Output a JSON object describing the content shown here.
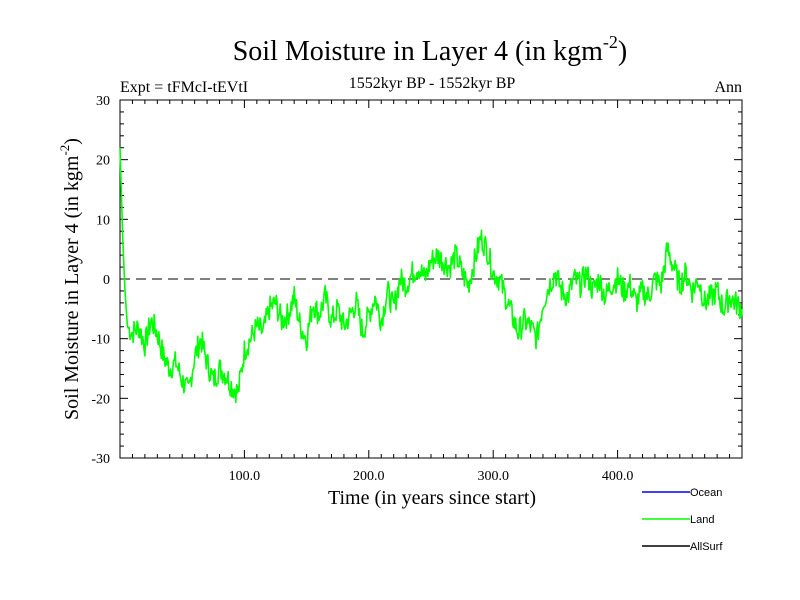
{
  "chart_data": {
    "type": "line",
    "title": "Soil Moisture in Layer 4 (in kgm",
    "title_superscript": "-2",
    "title_close": ")",
    "subtitle": "1552kyr BP - 1552kyr BP",
    "left_caption": "Expt = tFMcI-tEVtI",
    "right_caption": "Ann",
    "xlabel": "Time (in years since start)",
    "ylabel": "Soil Moisture in Layer 4 (in kgm",
    "ylabel_superscript": "-2",
    "ylabel_close": ")",
    "xlim": [
      0,
      500
    ],
    "ylim": [
      -30,
      30
    ],
    "xticks": [
      100,
      200,
      300,
      400
    ],
    "xtick_labels": [
      "100.0",
      "200.0",
      "300.0",
      "400.0"
    ],
    "yticks": [
      -30,
      -20,
      -10,
      0,
      10,
      20,
      30
    ],
    "ytick_labels": [
      "-30",
      "-20",
      "-10",
      "0",
      "10",
      "20",
      "30"
    ],
    "reference_line": 0,
    "legend": [
      {
        "name": "Ocean",
        "color": "#0000ff"
      },
      {
        "name": "Land",
        "color": "#00ff00"
      },
      {
        "name": "AllSurf",
        "color": "#000000"
      }
    ],
    "series": [
      {
        "name": "Land",
        "color": "#00ff00",
        "x": [
          0,
          2,
          4,
          6,
          10,
          15,
          20,
          25,
          30,
          35,
          40,
          45,
          50,
          55,
          60,
          65,
          70,
          75,
          80,
          85,
          90,
          95,
          100,
          105,
          110,
          115,
          120,
          125,
          130,
          135,
          140,
          145,
          150,
          155,
          160,
          165,
          170,
          175,
          180,
          185,
          190,
          195,
          200,
          205,
          210,
          215,
          220,
          225,
          230,
          235,
          240,
          245,
          250,
          255,
          260,
          265,
          270,
          275,
          280,
          285,
          290,
          295,
          300,
          305,
          310,
          315,
          320,
          325,
          330,
          335,
          340,
          345,
          350,
          355,
          360,
          365,
          370,
          375,
          380,
          385,
          390,
          395,
          400,
          405,
          410,
          415,
          420,
          425,
          430,
          435,
          440,
          445,
          450,
          455,
          460,
          465,
          470,
          475,
          480,
          485,
          490,
          495,
          500
        ],
        "values": [
          22,
          8,
          -2,
          -8,
          -9,
          -8,
          -11,
          -7,
          -9,
          -13,
          -15,
          -14,
          -17,
          -19,
          -13,
          -10,
          -14,
          -17,
          -15,
          -16,
          -18,
          -19,
          -12,
          -10,
          -8,
          -9,
          -5,
          -4,
          -7,
          -6,
          -3,
          -8,
          -10,
          -4,
          -6,
          -3,
          -7,
          -5,
          -8,
          -6,
          -4,
          -9,
          -6,
          -3,
          -7,
          -2,
          -5,
          0,
          -1,
          1,
          2,
          0,
          3,
          4,
          3,
          2,
          4,
          1,
          -1,
          3,
          7,
          5,
          1,
          0,
          -3,
          -6,
          -9,
          -7,
          -8,
          -10,
          -4,
          -1,
          1,
          -2,
          -3,
          0,
          -1,
          1,
          -2,
          0,
          -3,
          -1,
          0,
          -2,
          -1,
          -4,
          -2,
          -3,
          0,
          -1,
          5,
          2,
          -1,
          1,
          -2,
          0,
          -4,
          -3,
          -2,
          -5,
          -3,
          -4,
          -5
        ]
      }
    ]
  }
}
